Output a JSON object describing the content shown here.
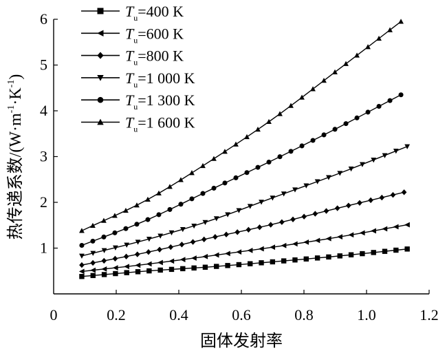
{
  "chart_data": {
    "type": "line",
    "title": "",
    "xlabel": "固体发射率",
    "ylabel": "热传递系数/(W·m⁻¹·K⁻¹)",
    "ylabel_parts": {
      "prefix": "热传递系数/(W·m",
      "exp1": "-1",
      "middle": "·K",
      "exp2": "-1",
      "suffix": ")"
    },
    "xlim": [
      0,
      1.2
    ],
    "ylim": [
      0,
      6
    ],
    "x_ticks": [
      0,
      0.2,
      0.4,
      0.6,
      0.8,
      1.0,
      1.2
    ],
    "x_tick_labels": [
      "0",
      "0.2",
      "0.4",
      "0.6",
      "0.8",
      "1.0",
      "1.2"
    ],
    "y_ticks": [
      1,
      2,
      3,
      4,
      5,
      6
    ],
    "y_tick_labels": [
      "1",
      "2",
      "3",
      "4",
      "5",
      "6"
    ],
    "legend_position": "top-left",
    "legend_symbol": "T",
    "legend_subscript": "u",
    "series": [
      {
        "name": "Tu=400 K",
        "temp_label": "=400 K",
        "marker": "square",
        "x_start": 0.09,
        "x_end": 1.13,
        "n_points": 30,
        "values": [
          [
            0.09,
            0.38
          ],
          [
            0.3,
            0.5
          ],
          [
            0.5,
            0.59
          ],
          [
            0.7,
            0.7
          ],
          [
            0.9,
            0.82
          ],
          [
            1.13,
            0.98
          ]
        ]
      },
      {
        "name": "Tu=600 K",
        "temp_label": "=600 K",
        "marker": "triangle-left",
        "x_start": 0.09,
        "x_end": 1.13,
        "n_points": 30,
        "values": [
          [
            0.09,
            0.49
          ],
          [
            0.3,
            0.65
          ],
          [
            0.5,
            0.83
          ],
          [
            0.7,
            1.02
          ],
          [
            0.9,
            1.23
          ],
          [
            1.13,
            1.51
          ]
        ]
      },
      {
        "name": "Tu=800 K",
        "temp_label": "=800 K",
        "marker": "diamond",
        "x_start": 0.09,
        "x_end": 1.12,
        "n_points": 30,
        "values": [
          [
            0.09,
            0.63
          ],
          [
            0.3,
            0.91
          ],
          [
            0.5,
            1.22
          ],
          [
            0.7,
            1.52
          ],
          [
            0.9,
            1.86
          ],
          [
            1.12,
            2.22
          ]
        ]
      },
      {
        "name": "Tu=1 000 K",
        "temp_label": "=1 000 K",
        "marker": "triangle-down",
        "x_start": 0.09,
        "x_end": 1.13,
        "n_points": 30,
        "values": [
          [
            0.09,
            0.83
          ],
          [
            0.3,
            1.19
          ],
          [
            0.5,
            1.6
          ],
          [
            0.7,
            2.1
          ],
          [
            0.9,
            2.6
          ],
          [
            1.13,
            3.22
          ]
        ]
      },
      {
        "name": "Tu=1 300 K",
        "temp_label": "=1 300 K",
        "marker": "circle",
        "x_start": 0.09,
        "x_end": 1.11,
        "n_points": 30,
        "values": [
          [
            0.09,
            1.06
          ],
          [
            0.3,
            1.62
          ],
          [
            0.5,
            2.27
          ],
          [
            0.7,
            2.92
          ],
          [
            0.9,
            3.6
          ],
          [
            1.11,
            4.35
          ]
        ]
      },
      {
        "name": "Tu=1 600 K",
        "temp_label": "=1 600 K",
        "marker": "triangle-up",
        "x_start": 0.09,
        "x_end": 1.11,
        "n_points": 30,
        "values": [
          [
            0.09,
            1.38
          ],
          [
            0.3,
            2.06
          ],
          [
            0.5,
            2.9
          ],
          [
            0.7,
            3.82
          ],
          [
            0.9,
            4.85
          ],
          [
            1.11,
            5.95
          ]
        ]
      }
    ]
  }
}
